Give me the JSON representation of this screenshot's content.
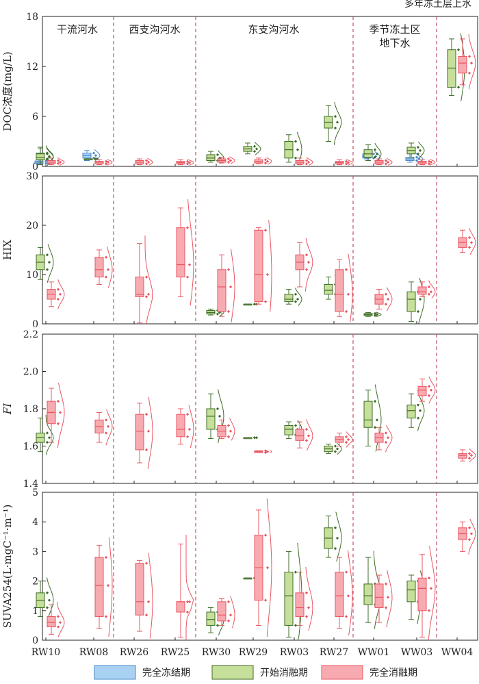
{
  "top_right_label": "多年冻土层上水",
  "groups": [
    {
      "id": "mainstem",
      "label": [
        "干流河水"
      ]
    },
    {
      "id": "west",
      "label": [
        "西支沟河水"
      ]
    },
    {
      "id": "east",
      "label": [
        "东支沟河水"
      ]
    },
    {
      "id": "seasonal",
      "label": [
        "季节冻土区",
        "地下水"
      ]
    }
  ],
  "sites": [
    "RW10",
    "RW08",
    "RW26",
    "RW25",
    "RW30",
    "RW29",
    "RW03",
    "RW27",
    "WW01",
    "WW03",
    "WW04"
  ],
  "legend": [
    {
      "key": "frozen",
      "label": "完全冻结期",
      "fill": "#a9d2f2",
      "stroke": "#4a88c8"
    },
    {
      "key": "onset",
      "label": "开始消融期",
      "fill": "#c6df9b",
      "stroke": "#3d6b26"
    },
    {
      "key": "thaw",
      "label": "完全消融期",
      "fill": "#f7aab0",
      "stroke": "#e85560"
    }
  ],
  "colors": {
    "frozen_fill": "#a9d2f2",
    "frozen_stroke": "#4a88c8",
    "onset_fill": "#c6df9b",
    "onset_stroke": "#3d6b26",
    "thaw_fill": "#f7aab0",
    "thaw_stroke": "#e85560",
    "divider": "#c0506a"
  },
  "chart_data": [
    {
      "type": "box",
      "ylabel": "DOC浓度(mg/L)",
      "ylim": [
        0,
        18
      ],
      "yticks": [
        0,
        6,
        12,
        18
      ],
      "boxes": [
        {
          "site": "RW10",
          "period": "frozen",
          "q1": 0.35,
          "med": 0.5,
          "q3": 0.65,
          "lo": 0.3,
          "hi": 0.8
        },
        {
          "site": "RW10",
          "period": "onset",
          "q1": 0.9,
          "med": 1.2,
          "q3": 1.6,
          "lo": 0.5,
          "hi": 2.1
        },
        {
          "site": "RW10",
          "period": "onset",
          "q1": 0.8,
          "med": 1.1,
          "q3": 1.5,
          "lo": 0.2,
          "hi": 2.3
        },
        {
          "site": "RW10",
          "period": "thaw",
          "q1": 0.35,
          "med": 0.5,
          "q3": 0.7,
          "lo": 0.2,
          "hi": 1.0
        },
        {
          "site": "RW08",
          "period": "frozen",
          "q1": 1.0,
          "med": 1.3,
          "q3": 1.6,
          "lo": 0.7,
          "hi": 1.9
        },
        {
          "site": "RW08",
          "period": "onset",
          "q1": 0.9,
          "med": 0.9,
          "q3": 0.9,
          "lo": 0.9,
          "hi": 0.9
        },
        {
          "site": "RW08",
          "period": "thaw",
          "q1": 0.3,
          "med": 0.5,
          "q3": 0.6,
          "lo": 0.2,
          "hi": 0.8
        },
        {
          "site": "RW26",
          "period": "thaw",
          "q1": 0.3,
          "med": 0.5,
          "q3": 0.7,
          "lo": 0.2,
          "hi": 0.9
        },
        {
          "site": "RW25",
          "period": "thaw",
          "q1": 0.3,
          "med": 0.45,
          "q3": 0.6,
          "lo": 0.2,
          "hi": 0.8
        },
        {
          "site": "RW30",
          "period": "onset",
          "q1": 0.7,
          "med": 1.0,
          "q3": 1.4,
          "lo": 0.5,
          "hi": 1.8
        },
        {
          "site": "RW30",
          "period": "thaw",
          "q1": 0.5,
          "med": 0.7,
          "q3": 0.9,
          "lo": 0.4,
          "hi": 1.1
        },
        {
          "site": "RW29",
          "period": "onset",
          "q1": 1.8,
          "med": 2.1,
          "q3": 2.4,
          "lo": 1.5,
          "hi": 2.8
        },
        {
          "site": "RW29",
          "period": "thaw",
          "q1": 0.4,
          "med": 0.6,
          "q3": 0.8,
          "lo": 0.3,
          "hi": 1.0
        },
        {
          "site": "RW03",
          "period": "onset",
          "q1": 1.0,
          "med": 2.0,
          "q3": 3.0,
          "lo": 0.5,
          "hi": 3.8
        },
        {
          "site": "RW03",
          "period": "thaw",
          "q1": 0.3,
          "med": 0.5,
          "q3": 0.7,
          "lo": 0.2,
          "hi": 1.0
        },
        {
          "site": "RW27",
          "period": "onset",
          "q1": 4.6,
          "med": 5.3,
          "q3": 6.0,
          "lo": 3.0,
          "hi": 7.3
        },
        {
          "site": "RW27",
          "period": "thaw",
          "q1": 0.3,
          "med": 0.45,
          "q3": 0.6,
          "lo": 0.2,
          "hi": 0.8
        },
        {
          "site": "WW01",
          "period": "frozen",
          "q1": 1.0,
          "med": 1.2,
          "q3": 1.5,
          "lo": 0.9,
          "hi": 1.7
        },
        {
          "site": "WW01",
          "period": "onset",
          "q1": 1.1,
          "med": 1.5,
          "q3": 2.0,
          "lo": 0.7,
          "hi": 2.6
        },
        {
          "site": "WW01",
          "period": "thaw",
          "q1": 0.3,
          "med": 0.5,
          "q3": 0.7,
          "lo": 0.2,
          "hi": 0.9
        },
        {
          "site": "WW03",
          "period": "frozen",
          "q1": 0.7,
          "med": 0.9,
          "q3": 1.1,
          "lo": 0.5,
          "hi": 1.5
        },
        {
          "site": "WW03",
          "period": "onset",
          "q1": 1.5,
          "med": 1.9,
          "q3": 2.3,
          "lo": 1.1,
          "hi": 2.8
        },
        {
          "site": "WW03",
          "period": "thaw",
          "q1": 0.3,
          "med": 0.5,
          "q3": 0.6,
          "lo": 0.2,
          "hi": 0.8
        },
        {
          "site": "WW04",
          "period": "onset",
          "q1": 9.5,
          "med": 11.8,
          "q3": 14.0,
          "lo": 8.5,
          "hi": 15.3
        },
        {
          "site": "WW04",
          "period": "thaw",
          "q1": 11.2,
          "med": 12.4,
          "q3": 13.2,
          "lo": 9.8,
          "hi": 15.3
        }
      ]
    },
    {
      "type": "box",
      "ylabel": "HIX",
      "ylim": [
        0,
        30
      ],
      "yticks": [
        0,
        10,
        20,
        30
      ],
      "boxes": [
        {
          "site": "RW10",
          "period": "onset",
          "q1": 11,
          "med": 12.5,
          "q3": 14,
          "lo": 9,
          "hi": 15.5
        },
        {
          "site": "RW10",
          "period": "thaw",
          "q1": 5,
          "med": 6,
          "q3": 7,
          "lo": 3.5,
          "hi": 8.5
        },
        {
          "site": "RW08",
          "period": "thaw",
          "q1": 9.5,
          "med": 11,
          "q3": 13.5,
          "lo": 8,
          "hi": 15
        },
        {
          "site": "RW26",
          "period": "thaw",
          "q1": 5.5,
          "med": 6,
          "q3": 9.5,
          "lo": 0.2,
          "hi": 16.3
        },
        {
          "site": "RW25",
          "period": "thaw",
          "q1": 9.5,
          "med": 12,
          "q3": 19.5,
          "lo": 5.5,
          "hi": 23.5
        },
        {
          "site": "RW30",
          "period": "onset",
          "q1": 2,
          "med": 2.3,
          "q3": 2.7,
          "lo": 1.8,
          "hi": 3
        },
        {
          "site": "RW30",
          "period": "thaw",
          "q1": 2.5,
          "med": 7.5,
          "q3": 11,
          "lo": 1.5,
          "hi": 14
        },
        {
          "site": "RW29",
          "period": "onset",
          "q1": 4,
          "med": 4,
          "q3": 4,
          "lo": 4,
          "hi": 4
        },
        {
          "site": "RW29",
          "period": "thaw",
          "q1": 4.5,
          "med": 10,
          "q3": 19,
          "lo": 4,
          "hi": 19.5
        },
        {
          "site": "RW03",
          "period": "onset",
          "q1": 4.5,
          "med": 5,
          "q3": 6,
          "lo": 4,
          "hi": 7
        },
        {
          "site": "RW03",
          "period": "thaw",
          "q1": 11,
          "med": 12.5,
          "q3": 14,
          "lo": 7.5,
          "hi": 16.5
        },
        {
          "site": "RW27",
          "period": "onset",
          "q1": 6,
          "med": 6.8,
          "q3": 8,
          "lo": 5,
          "hi": 9.5
        },
        {
          "site": "RW27",
          "period": "thaw",
          "q1": 2.5,
          "med": 6,
          "q3": 11,
          "lo": 1.5,
          "hi": 13
        },
        {
          "site": "WW01",
          "period": "onset",
          "q1": 1.7,
          "med": 1.9,
          "q3": 2.1,
          "lo": 1.5,
          "hi": 2.3
        },
        {
          "site": "WW01",
          "period": "thaw",
          "q1": 4,
          "med": 5,
          "q3": 6,
          "lo": 3,
          "hi": 7
        },
        {
          "site": "WW03",
          "period": "onset",
          "q1": 2.5,
          "med": 5,
          "q3": 6.5,
          "lo": 0.5,
          "hi": 8.5
        },
        {
          "site": "WW03",
          "period": "thaw",
          "q1": 6,
          "med": 6.5,
          "q3": 7.5,
          "lo": 5.5,
          "hi": 8.5
        },
        {
          "site": "WW04",
          "period": "thaw",
          "q1": 15.5,
          "med": 16.5,
          "q3": 17.5,
          "lo": 14.5,
          "hi": 19
        }
      ]
    },
    {
      "type": "box",
      "ylabel": "FI",
      "ylim": [
        1.4,
        2.2
      ],
      "yticks": [
        1.4,
        1.6,
        1.8,
        2.0,
        2.2
      ],
      "ytick_labels": [
        "1.4",
        "1.6",
        "1.8",
        "2.0",
        "2.2"
      ],
      "boxes": [
        {
          "site": "RW10",
          "period": "onset",
          "q1": 1.62,
          "med": 1.645,
          "q3": 1.67,
          "lo": 1.57,
          "hi": 1.75
        },
        {
          "site": "RW10",
          "period": "thaw",
          "q1": 1.72,
          "med": 1.78,
          "q3": 1.84,
          "lo": 1.62,
          "hi": 1.91
        },
        {
          "site": "RW08",
          "period": "thaw",
          "q1": 1.67,
          "med": 1.705,
          "q3": 1.74,
          "lo": 1.62,
          "hi": 1.78
        },
        {
          "site": "RW26",
          "period": "thaw",
          "q1": 1.58,
          "med": 1.68,
          "q3": 1.77,
          "lo": 1.51,
          "hi": 1.83
        },
        {
          "site": "RW25",
          "period": "thaw",
          "q1": 1.65,
          "med": 1.69,
          "q3": 1.77,
          "lo": 1.61,
          "hi": 1.8
        },
        {
          "site": "RW30",
          "period": "onset",
          "q1": 1.69,
          "med": 1.76,
          "q3": 1.8,
          "lo": 1.64,
          "hi": 1.88
        },
        {
          "site": "RW30",
          "period": "thaw",
          "q1": 1.65,
          "med": 1.68,
          "q3": 1.71,
          "lo": 1.64,
          "hi": 1.74
        },
        {
          "site": "RW29",
          "period": "onset",
          "q1": 1.645,
          "med": 1.645,
          "q3": 1.645,
          "lo": 1.645,
          "hi": 1.645
        },
        {
          "site": "RW29",
          "period": "thaw",
          "q1": 1.565,
          "med": 1.57,
          "q3": 1.575,
          "lo": 1.565,
          "hi": 1.575
        },
        {
          "site": "RW03",
          "period": "onset",
          "q1": 1.66,
          "med": 1.69,
          "q3": 1.71,
          "lo": 1.64,
          "hi": 1.73
        },
        {
          "site": "RW03",
          "period": "thaw",
          "q1": 1.63,
          "med": 1.655,
          "q3": 1.69,
          "lo": 1.59,
          "hi": 1.73
        },
        {
          "site": "RW27",
          "period": "onset",
          "q1": 1.57,
          "med": 1.585,
          "q3": 1.6,
          "lo": 1.56,
          "hi": 1.61
        },
        {
          "site": "RW27",
          "period": "thaw",
          "q1": 1.62,
          "med": 1.635,
          "q3": 1.65,
          "lo": 1.6,
          "hi": 1.67
        },
        {
          "site": "WW01",
          "period": "onset",
          "q1": 1.7,
          "med": 1.74,
          "q3": 1.84,
          "lo": 1.6,
          "hi": 1.9
        },
        {
          "site": "WW01",
          "period": "thaw",
          "q1": 1.62,
          "med": 1.645,
          "q3": 1.67,
          "lo": 1.58,
          "hi": 1.7
        },
        {
          "site": "WW03",
          "period": "onset",
          "q1": 1.75,
          "med": 1.79,
          "q3": 1.82,
          "lo": 1.7,
          "hi": 1.88
        },
        {
          "site": "WW03",
          "period": "thaw",
          "q1": 1.87,
          "med": 1.9,
          "q3": 1.92,
          "lo": 1.84,
          "hi": 1.96
        },
        {
          "site": "WW04",
          "period": "thaw",
          "q1": 1.535,
          "med": 1.55,
          "q3": 1.56,
          "lo": 1.52,
          "hi": 1.58
        }
      ]
    },
    {
      "type": "box",
      "ylabel": "SUVA254(L·mgC⁻¹·m⁻¹)",
      "ylim": [
        0,
        5
      ],
      "yticks": [
        0,
        1,
        2,
        3,
        4,
        5
      ],
      "boxes": [
        {
          "site": "RW10",
          "period": "onset",
          "q1": 1.1,
          "med": 1.35,
          "q3": 1.6,
          "lo": 0.8,
          "hi": 2.0
        },
        {
          "site": "RW10",
          "period": "thaw",
          "q1": 0.45,
          "med": 0.6,
          "q3": 0.8,
          "lo": 0.2,
          "hi": 1.2
        },
        {
          "site": "RW08",
          "period": "thaw",
          "q1": 0.8,
          "med": 1.85,
          "q3": 2.8,
          "lo": 0.4,
          "hi": 3.2
        },
        {
          "site": "RW26",
          "period": "thaw",
          "q1": 0.85,
          "med": 1.3,
          "q3": 2.6,
          "lo": 0.3,
          "hi": 2.7
        },
        {
          "site": "RW25",
          "period": "thaw",
          "q1": 0.95,
          "med": 1.3,
          "q3": 1.3,
          "lo": 0.1,
          "hi": 3.25
        },
        {
          "site": "RW30",
          "period": "onset",
          "q1": 0.5,
          "med": 0.7,
          "q3": 0.95,
          "lo": 0.25,
          "hi": 1.1
        },
        {
          "site": "RW30",
          "period": "thaw",
          "q1": 0.65,
          "med": 0.85,
          "q3": 1.3,
          "lo": 0.5,
          "hi": 1.4
        },
        {
          "site": "RW29",
          "period": "onset",
          "q1": 2.1,
          "med": 2.1,
          "q3": 2.1,
          "lo": 2.1,
          "hi": 2.1
        },
        {
          "site": "RW29",
          "period": "thaw",
          "q1": 1.35,
          "med": 2.45,
          "q3": 3.55,
          "lo": 0.5,
          "hi": 4.4
        },
        {
          "site": "RW03",
          "period": "onset",
          "q1": 0.5,
          "med": 1.5,
          "q3": 2.3,
          "lo": 0.1,
          "hi": 3.0
        },
        {
          "site": "RW03",
          "period": "thaw",
          "q1": 0.8,
          "med": 1.1,
          "q3": 1.6,
          "lo": 0.5,
          "hi": 2.3
        },
        {
          "site": "RW27",
          "period": "onset",
          "q1": 3.1,
          "med": 3.45,
          "q3": 3.8,
          "lo": 2.8,
          "hi": 4.2
        },
        {
          "site": "RW27",
          "period": "thaw",
          "q1": 0.8,
          "med": 1.5,
          "q3": 2.3,
          "lo": 0.4,
          "hi": 2.8
        },
        {
          "site": "WW01",
          "period": "onset",
          "q1": 1.2,
          "med": 1.5,
          "q3": 1.9,
          "lo": 0.6,
          "hi": 2.8
        },
        {
          "site": "WW01",
          "period": "thaw",
          "q1": 1.1,
          "med": 1.45,
          "q3": 1.9,
          "lo": 0.6,
          "hi": 2.2
        },
        {
          "site": "WW03",
          "period": "onset",
          "q1": 1.3,
          "med": 1.7,
          "q3": 2.0,
          "lo": 0.7,
          "hi": 2.2
        },
        {
          "site": "WW03",
          "period": "thaw",
          "q1": 1.0,
          "med": 1.75,
          "q3": 2.1,
          "lo": 0.1,
          "hi": 2.9
        },
        {
          "site": "WW04",
          "period": "thaw",
          "q1": 3.4,
          "med": 3.6,
          "q3": 3.8,
          "lo": 3.0,
          "hi": 4.0
        }
      ]
    }
  ]
}
